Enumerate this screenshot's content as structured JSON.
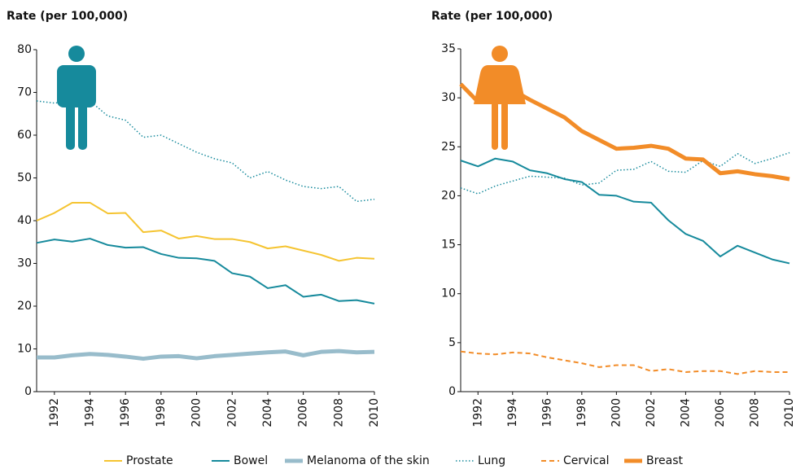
{
  "chart_data": [
    {
      "type": "line",
      "y_label": "Rate (per 100,000)",
      "x": [
        1991,
        1992,
        1993,
        1994,
        1995,
        1996,
        1997,
        1998,
        1999,
        2000,
        2001,
        2002,
        2003,
        2004,
        2005,
        2006,
        2007,
        2008,
        2009,
        2010
      ],
      "xlim": [
        1991,
        2010
      ],
      "xticks": [
        1992,
        1994,
        1996,
        1998,
        2000,
        2002,
        2004,
        2006,
        2008,
        2010
      ],
      "ylim": [
        0,
        80
      ],
      "yticks": [
        0,
        10,
        20,
        30,
        40,
        50,
        60,
        70,
        80
      ],
      "series": [
        {
          "name": "Prostate",
          "color": "#f5c431",
          "style": "solid",
          "width": 2,
          "values": [
            40,
            41.8,
            44.2,
            44.2,
            41.7,
            41.8,
            37.3,
            37.7,
            35.8,
            36.4,
            35.7,
            35.7,
            35,
            33.5,
            34,
            33,
            32,
            30.6,
            31.3,
            31.1
          ]
        },
        {
          "name": "Bowel",
          "color": "#168a9c",
          "style": "solid",
          "width": 2,
          "values": [
            34.8,
            35.6,
            35.1,
            35.8,
            34.3,
            33.7,
            33.8,
            32.2,
            31.3,
            31.2,
            30.6,
            27.7,
            26.9,
            24.2,
            24.9,
            22.2,
            22.7,
            21.2,
            21.4,
            20.6
          ]
        },
        {
          "name": "Melanoma of the skin",
          "color": "#98bccb",
          "style": "solid",
          "width": 5,
          "values": [
            8,
            8,
            8.5,
            8.8,
            8.6,
            8.2,
            7.7,
            8.2,
            8.3,
            7.8,
            8.3,
            8.6,
            8.9,
            9.2,
            9.4,
            8.5,
            9.3,
            9.5,
            9.2,
            9.3
          ]
        },
        {
          "name": "Lung",
          "color": "#168a9c",
          "style": "dotted",
          "width": 1.5,
          "values": [
            68,
            67.5,
            68,
            68,
            64.5,
            63.5,
            59.5,
            60,
            58,
            56,
            54.5,
            53.5,
            50,
            51.5,
            49.5,
            48,
            47.5,
            48,
            44.5,
            45
          ]
        }
      ]
    },
    {
      "type": "line",
      "y_label": "Rate (per 100,000)",
      "x": [
        1991,
        1992,
        1993,
        1994,
        1995,
        1996,
        1997,
        1998,
        1999,
        2000,
        2001,
        2002,
        2003,
        2004,
        2005,
        2006,
        2007,
        2008,
        2009,
        2010
      ],
      "xlim": [
        1991,
        2010
      ],
      "xticks": [
        1992,
        1994,
        1996,
        1998,
        2000,
        2002,
        2004,
        2006,
        2008,
        2010
      ],
      "ylim": [
        0,
        35
      ],
      "yticks": [
        0,
        5,
        10,
        15,
        20,
        25,
        30,
        35
      ],
      "series": [
        {
          "name": "Bowel",
          "color": "#168a9c",
          "style": "solid",
          "width": 2,
          "values": [
            23.6,
            23,
            23.8,
            23.5,
            22.6,
            22.3,
            21.7,
            21.4,
            20.1,
            20,
            19.4,
            19.3,
            17.5,
            16.1,
            15.4,
            13.8,
            14.9,
            14.2,
            13.5,
            13.1
          ]
        },
        {
          "name": "Lung",
          "color": "#168a9c",
          "style": "dotted",
          "width": 1.5,
          "values": [
            20.8,
            20.2,
            21,
            21.5,
            22,
            21.9,
            21.8,
            21.1,
            21.3,
            22.6,
            22.7,
            23.5,
            22.5,
            22.4,
            23.6,
            23,
            24.3,
            23.3,
            23.8,
            24.4
          ]
        },
        {
          "name": "Cervical",
          "color": "#f28c28",
          "style": "dashed",
          "width": 2,
          "values": [
            4.1,
            3.9,
            3.8,
            4,
            3.9,
            3.5,
            3.2,
            2.9,
            2.5,
            2.7,
            2.7,
            2.1,
            2.3,
            2,
            2.1,
            2.1,
            1.8,
            2.1,
            2,
            2
          ]
        },
        {
          "name": "Breast",
          "color": "#f28c28",
          "style": "solid",
          "width": 5,
          "values": [
            31.4,
            29.6,
            31.5,
            30.8,
            29.8,
            28.9,
            28,
            26.6,
            25.7,
            24.8,
            24.9,
            25.1,
            24.8,
            23.8,
            23.7,
            22.3,
            22.5,
            22.2,
            22,
            21.7
          ]
        }
      ]
    }
  ]
}
